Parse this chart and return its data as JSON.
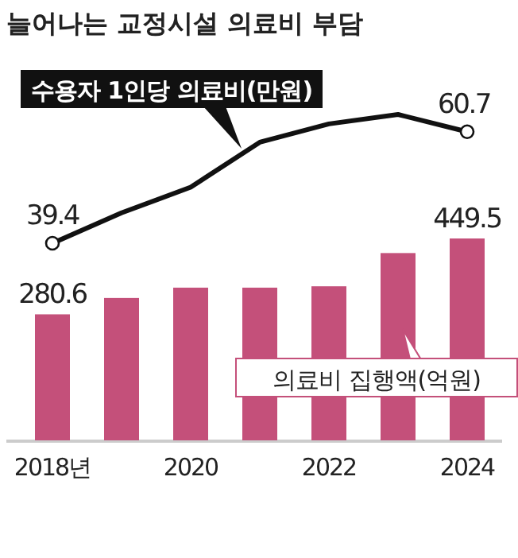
{
  "chart_data": {
    "type": "bar",
    "title": "늘어나는 교정시설 의료비 부담",
    "categories": [
      "2018년",
      null,
      "2020",
      null,
      "2022",
      null,
      "2024"
    ],
    "legend": false,
    "series": [
      {
        "name": "의료비 집행액(억원)",
        "color": "#c4507a",
        "values": [
          280.6,
          317,
          340,
          340,
          343,
          417,
          449.5
        ],
        "value_labels": [
          "280.6",
          null,
          null,
          null,
          null,
          null,
          "449.5"
        ]
      },
      {
        "name": "수용자 1인당 의료비(만원)",
        "type": "line",
        "axis": "y2",
        "color": "#111111",
        "values": [
          39.4,
          45.2,
          50.1,
          58.7,
          62.2,
          64.0,
          60.7
        ],
        "value_labels": [
          "39.4",
          null,
          null,
          null,
          null,
          null,
          "60.7"
        ]
      }
    ]
  }
}
